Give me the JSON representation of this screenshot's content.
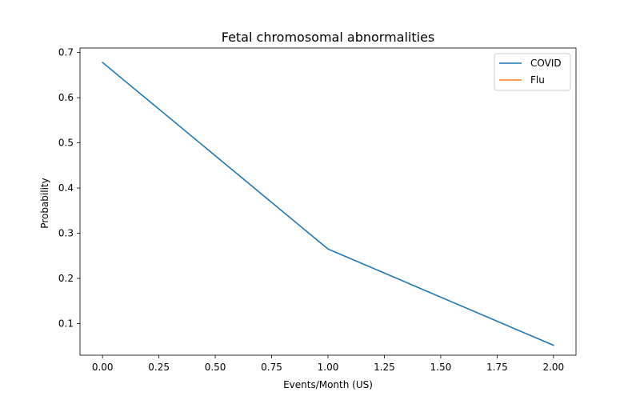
{
  "chart_data": {
    "type": "line",
    "title": "Fetal chromosomal abnormalities",
    "xlabel": "Events/Month (US)",
    "ylabel": "Probability",
    "xlim": [
      -0.1,
      2.1
    ],
    "ylim": [
      0.03,
      0.71
    ],
    "xticks": [
      0.0,
      0.25,
      0.5,
      0.75,
      1.0,
      1.25,
      1.5,
      1.75,
      2.0
    ],
    "xtick_labels": [
      "0.00",
      "0.25",
      "0.50",
      "0.75",
      "1.00",
      "1.25",
      "1.50",
      "1.75",
      "2.00"
    ],
    "yticks": [
      0.1,
      0.2,
      0.3,
      0.4,
      0.5,
      0.6,
      0.7
    ],
    "ytick_labels": [
      "0.1",
      "0.2",
      "0.3",
      "0.4",
      "0.5",
      "0.6",
      "0.7"
    ],
    "grid": false,
    "legend_position": "upper right",
    "series": [
      {
        "name": "COVID",
        "color": "#1f77b4",
        "x": [
          0,
          1,
          2
        ],
        "y": [
          0.678,
          0.265,
          0.052
        ]
      },
      {
        "name": "Flu",
        "color": "#ff7f0e",
        "x": [],
        "y": []
      }
    ]
  }
}
